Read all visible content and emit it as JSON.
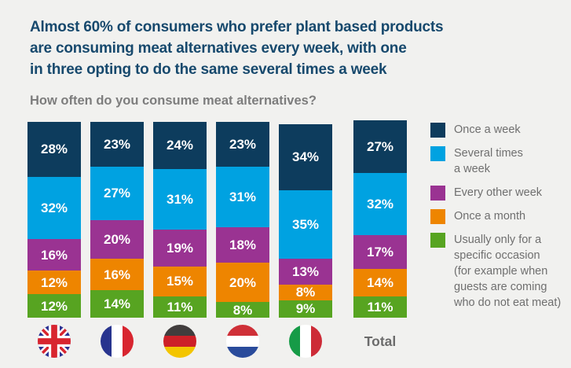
{
  "background_color": "#f1f1ef",
  "title": {
    "color": "#17496d",
    "lines": [
      "Almost 60% of consumers who prefer plant based products",
      "are consuming meat alternatives every week, with one",
      "in three opting to do the same several times a week"
    ]
  },
  "subtitle": "How often do you consume meat alternatives?",
  "total_label": "Total",
  "chart_data": {
    "type": "bar",
    "subtype": "stacked-percentage-columns",
    "title": "How often do you consume meat alternatives?",
    "categories": [
      "United Kingdom",
      "France",
      "Germany",
      "Netherlands",
      "Italy",
      "Total"
    ],
    "category_icons": [
      "uk-flag",
      "france-flag",
      "germany-flag",
      "netherlands-flag",
      "italy-flag",
      "total-text"
    ],
    "series": [
      {
        "name": "Once a week",
        "color": "#0d3c5d",
        "values": [
          28,
          23,
          24,
          23,
          34,
          27
        ]
      },
      {
        "name": "Several times a week",
        "color": "#00a2e1",
        "values": [
          32,
          27,
          31,
          31,
          35,
          32
        ]
      },
      {
        "name": "Every other week",
        "color": "#9a3392",
        "values": [
          16,
          20,
          19,
          18,
          13,
          17
        ]
      },
      {
        "name": "Once a month",
        "color": "#ee8500",
        "values": [
          12,
          16,
          15,
          20,
          8,
          14
        ]
      },
      {
        "name": "Usually only for a specific occasion (for example when guests are coming who do not eat meat)",
        "color": "#57a421",
        "values": [
          12,
          14,
          11,
          8,
          9,
          11
        ]
      }
    ],
    "value_suffix": "%",
    "value_labels": "inside-white-bold",
    "legend_position": "right",
    "grid": false,
    "axis": "none"
  },
  "legend": {
    "items": [
      {
        "label": "Once a week",
        "color": "#0d3c5d"
      },
      {
        "label": "Several times\na week",
        "color": "#00a2e1"
      },
      {
        "label": "Every other week",
        "color": "#9a3392"
      },
      {
        "label": "Once a month",
        "color": "#ee8500"
      },
      {
        "label": "Usually only for a\nspecific occasion\n (for example when\nguests are coming\nwho do not eat meat)",
        "color": "#57a421"
      }
    ]
  },
  "flags": [
    "uk",
    "france",
    "germany",
    "netherlands",
    "italy"
  ],
  "flag_colors": {
    "uk_blue": "#2b3292",
    "uk_red": "#d8252f",
    "france": [
      "#28348e",
      "#ffffff",
      "#d8252f"
    ],
    "germany": [
      "#413d3d",
      "#cd2028",
      "#f3c500"
    ],
    "netherlands": [
      "#cf3038",
      "#ffffff",
      "#2a4b9b"
    ],
    "italy": [
      "#169b47",
      "#ffffff",
      "#cd2b37"
    ]
  }
}
